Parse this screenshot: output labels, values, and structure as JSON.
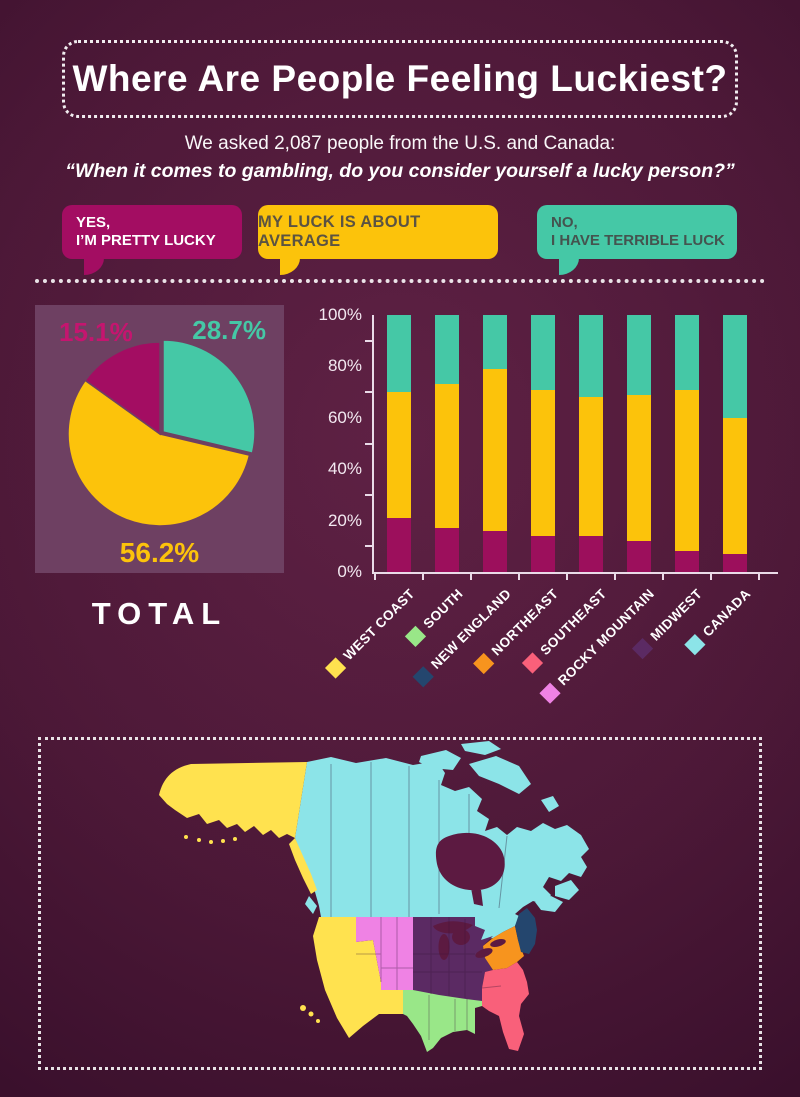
{
  "title": "Where Are People Feeling Luckiest?",
  "intro": {
    "line1": "We asked 2,087 people from the U.S. and Canada:",
    "line2": "“When it comes to gambling, do you consider yourself a lucky person?”"
  },
  "answers": [
    {
      "id": "lucky",
      "line1": "YES,",
      "line2": "I’M PRETTY LUCKY",
      "color": "#a30d62",
      "text_color": "#ffffff"
    },
    {
      "id": "average",
      "line1": "MY LUCK IS ABOUT AVERAGE",
      "line2": "",
      "color": "#fcc30b",
      "text_color": "#5b5342"
    },
    {
      "id": "terrible",
      "line1": "NO,",
      "line2": "I HAVE TERRIBLE LUCK",
      "color": "#45c8a6",
      "text_color": "#44544f"
    }
  ],
  "total_label": "TOTAL",
  "chart_data": [
    {
      "type": "pie",
      "title": "TOTAL",
      "start_angle_deg": 0,
      "slices": [
        {
          "name": "NO, I HAVE TERRIBLE LUCK",
          "label": "28.7%",
          "value": 28.7,
          "color": "#45c8a6",
          "exploded": true
        },
        {
          "name": "MY LUCK IS ABOUT AVERAGE",
          "label": "56.2%",
          "value": 56.2,
          "color": "#fcc30b",
          "exploded": false
        },
        {
          "name": "YES, I’M PRETTY LUCKY",
          "label": "15.1%",
          "value": 15.1,
          "color": "#a30d62",
          "exploded": false
        }
      ]
    },
    {
      "type": "stacked_bar",
      "categories": [
        "WEST COAST",
        "SOUTH",
        "NEW ENGLAND",
        "NORTHEAST",
        "SOUTHEAST",
        "ROCKY MOUNTAIN",
        "MIDWEST",
        "CANADA"
      ],
      "series": [
        {
          "name": "YES, I’M PRETTY LUCKY",
          "color": "#9c0f5c",
          "values": [
            21,
            17,
            16,
            14,
            14,
            12,
            8,
            7
          ]
        },
        {
          "name": "MY LUCK IS ABOUT AVERAGE",
          "color": "#fcc30b",
          "values": [
            49,
            56,
            63,
            57,
            54,
            57,
            63,
            53
          ]
        },
        {
          "name": "NO, I HAVE TERRIBLE LUCK",
          "color": "#45c8a6",
          "values": [
            30,
            27,
            21,
            29,
            32,
            31,
            29,
            40
          ]
        }
      ],
      "yticks": [
        "0%",
        "20%",
        "40%",
        "60%",
        "80%",
        "100%"
      ],
      "ylim": [
        0,
        100
      ],
      "grid": false,
      "legend_position": "bottom"
    }
  ],
  "regions": [
    {
      "label": "WEST COAST",
      "color": "#ffe24f"
    },
    {
      "label": "SOUTH",
      "color": "#99e788"
    },
    {
      "label": "NEW ENGLAND",
      "color": "#24466e"
    },
    {
      "label": "NORTHEAST",
      "color": "#f7941e"
    },
    {
      "label": "SOUTHEAST",
      "color": "#f9607a"
    },
    {
      "label": "ROCKY MOUNTAIN",
      "color": "#ef82e4"
    },
    {
      "label": "MIDWEST",
      "color": "#5b2a63"
    },
    {
      "label": "CANADA",
      "color": "#8ce4e8"
    }
  ],
  "colors": {
    "background": "#4c1837",
    "water": "#5c1a41",
    "pie_card_background": "#6e4062",
    "axis": "#eadbe8"
  }
}
